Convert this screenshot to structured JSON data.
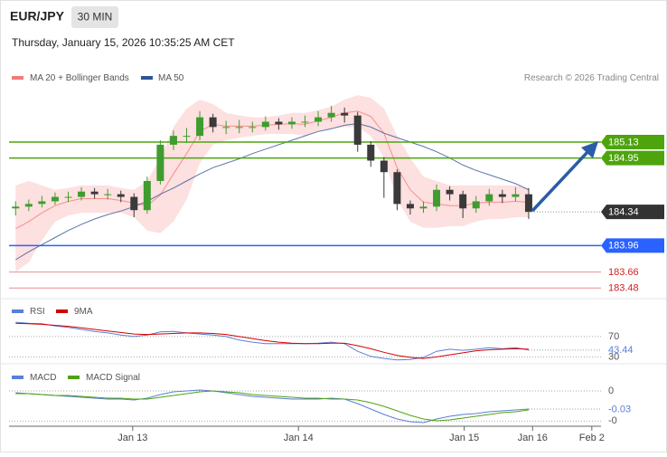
{
  "header": {
    "symbol": "EUR/JPY",
    "interval": "30 MIN",
    "timestamp": "Thursday, January 15, 2026 10:35:25 AM CET",
    "credit": "Research © 2026 Trading Central"
  },
  "chart_data": [
    {
      "type": "candlestick",
      "x": [
        0,
        1,
        2,
        3,
        4,
        5,
        6,
        7,
        8,
        9,
        10,
        11,
        12,
        13,
        14,
        15,
        16,
        17,
        18,
        19,
        20,
        21,
        22,
        23,
        24,
        25,
        26,
        27,
        28,
        29,
        30,
        31,
        32,
        33,
        34,
        35,
        36,
        37,
        38,
        39
      ],
      "open": [
        184.38,
        184.4,
        184.43,
        184.46,
        184.51,
        184.51,
        184.57,
        184.54,
        184.54,
        184.51,
        184.36,
        184.69,
        185.1,
        185.2,
        185.2,
        185.41,
        185.3,
        185.3,
        185.3,
        185.3,
        185.36,
        185.33,
        185.36,
        185.36,
        185.41,
        185.46,
        185.43,
        185.1,
        184.92,
        184.79,
        184.43,
        184.38,
        184.4,
        184.59,
        184.54,
        184.38,
        184.46,
        184.54,
        184.51,
        184.54
      ],
      "high": [
        184.46,
        184.48,
        184.52,
        184.56,
        184.57,
        184.62,
        184.61,
        184.6,
        184.58,
        184.55,
        184.74,
        185.15,
        185.26,
        185.29,
        185.48,
        185.45,
        185.37,
        185.38,
        185.36,
        185.42,
        185.4,
        185.41,
        185.43,
        185.48,
        185.54,
        185.52,
        185.47,
        185.14,
        184.96,
        184.82,
        184.47,
        184.46,
        184.65,
        184.63,
        184.58,
        184.52,
        184.6,
        184.59,
        184.62,
        184.61
      ],
      "low": [
        184.3,
        184.35,
        184.39,
        184.42,
        184.45,
        184.47,
        184.49,
        184.48,
        184.45,
        184.28,
        184.32,
        184.65,
        185.04,
        185.12,
        185.15,
        185.24,
        185.22,
        185.23,
        185.24,
        185.26,
        185.27,
        185.28,
        185.3,
        185.31,
        185.36,
        185.35,
        185.02,
        184.85,
        184.5,
        184.36,
        184.31,
        184.33,
        184.35,
        184.47,
        184.27,
        184.33,
        184.41,
        184.44,
        184.46,
        184.26
      ],
      "close": [
        184.4,
        184.43,
        184.46,
        184.51,
        184.51,
        184.57,
        184.54,
        184.54,
        184.51,
        184.36,
        184.69,
        185.1,
        185.2,
        185.2,
        185.41,
        185.3,
        185.3,
        185.3,
        185.3,
        185.36,
        185.33,
        185.36,
        185.36,
        185.41,
        185.46,
        185.43,
        185.1,
        184.92,
        184.79,
        184.43,
        184.38,
        184.4,
        184.59,
        184.54,
        184.38,
        184.46,
        184.54,
        184.51,
        184.54,
        184.34
      ],
      "up_color": "#3f9c2f",
      "down_color": "#3a3a3a",
      "series": [
        {
          "name": "MA 20 + Bollinger Bands",
          "color": "#f47a7a",
          "band_color": "#fde0e0",
          "values": [
            184.15,
            184.23,
            184.33,
            184.41,
            184.46,
            184.49,
            184.49,
            184.49,
            184.47,
            184.44,
            184.41,
            184.53,
            184.77,
            185.0,
            185.25,
            185.33,
            185.31,
            185.31,
            185.31,
            185.32,
            185.33,
            185.34,
            185.33,
            185.37,
            185.41,
            185.46,
            185.48,
            185.42,
            185.23,
            184.84,
            184.59,
            184.45,
            184.43,
            184.41,
            184.41,
            184.44,
            184.45,
            184.45,
            184.46,
            184.45
          ],
          "upper": [
            184.64,
            184.69,
            184.64,
            184.59,
            184.61,
            184.64,
            184.64,
            184.64,
            184.61,
            184.59,
            184.69,
            184.95,
            185.3,
            185.51,
            185.61,
            185.56,
            185.46,
            185.43,
            185.41,
            185.41,
            185.43,
            185.46,
            185.46,
            185.49,
            185.53,
            185.61,
            185.66,
            185.63,
            185.51,
            185.2,
            184.95,
            184.74,
            184.69,
            184.64,
            184.64,
            184.64,
            184.64,
            184.64,
            184.64,
            184.61
          ],
          "lower": [
            183.66,
            183.77,
            184.02,
            184.23,
            184.3,
            184.33,
            184.33,
            184.33,
            184.33,
            184.28,
            184.13,
            184.1,
            184.23,
            184.48,
            184.89,
            185.1,
            185.15,
            185.18,
            185.2,
            185.22,
            185.22,
            185.22,
            185.2,
            185.25,
            185.28,
            185.3,
            185.3,
            185.2,
            184.95,
            184.48,
            184.23,
            184.16,
            184.16,
            184.18,
            184.18,
            184.23,
            184.26,
            184.26,
            184.28,
            184.28
          ]
        },
        {
          "name": "MA 50",
          "color": "#2e5597",
          "values": [
            183.8,
            183.89,
            183.97,
            184.05,
            184.13,
            184.2,
            184.26,
            184.31,
            184.35,
            184.4,
            184.46,
            184.54,
            184.61,
            184.69,
            184.77,
            184.84,
            184.89,
            184.94,
            185.0,
            185.05,
            185.1,
            185.15,
            185.2,
            185.25,
            185.28,
            185.32,
            185.34,
            185.3,
            185.23,
            185.18,
            185.13,
            185.08,
            185.02,
            184.95,
            184.87,
            184.81,
            184.76,
            184.71,
            184.66,
            184.59
          ]
        }
      ],
      "levels": [
        {
          "value": 185.13,
          "color": "#4ea40d",
          "style": "box"
        },
        {
          "value": 184.95,
          "color": "#4ea40d",
          "style": "box"
        },
        {
          "value": 183.96,
          "color": "#2962ff",
          "style": "box"
        },
        {
          "value": 183.66,
          "color": "#d42020",
          "style": "text"
        },
        {
          "value": 183.48,
          "color": "#d42020",
          "style": "text"
        }
      ],
      "current_color": "#333333",
      "xlim": [
        -0.5,
        44.5
      ],
      "ylim": [
        183.38,
        186.02
      ],
      "xticks": [
        {
          "value": 8.9,
          "label": "Jan 13"
        },
        {
          "value": 21.5,
          "label": "Jan 14"
        },
        {
          "value": 34.1,
          "label": "Jan 15"
        },
        {
          "value": 39.3,
          "label": "Jan 16"
        },
        {
          "value": 43.8,
          "label": "Feb 2"
        }
      ]
    },
    {
      "type": "line",
      "series": [
        {
          "name": "RSI",
          "color": "#5b7fd6",
          "values": [
            98,
            96,
            95,
            91,
            88,
            84,
            80,
            77,
            73,
            70,
            73,
            79,
            80,
            77,
            75,
            73,
            70,
            63,
            59,
            56,
            56,
            56,
            56,
            57,
            59,
            56,
            41,
            31,
            27,
            24,
            25,
            29,
            41,
            45,
            43,
            45,
            48,
            46,
            48,
            43.44
          ]
        },
        {
          "name": "9MA",
          "color": "#d40000",
          "values": [
            96,
            95,
            94,
            92,
            90,
            87,
            84,
            81,
            78,
            75,
            74,
            75,
            76,
            77,
            77,
            76,
            74,
            70,
            66,
            62,
            59,
            57,
            56,
            56,
            57,
            57,
            52,
            46,
            39,
            33,
            29,
            27,
            30,
            34,
            38,
            42,
            44,
            45,
            46,
            45
          ]
        }
      ],
      "ylim": [
        20,
        100
      ],
      "yticks": [
        30,
        70
      ]
    },
    {
      "type": "line",
      "series": [
        {
          "name": "MACD",
          "color": "#5b7fd6",
          "values": [
            -0.003,
            -0.0045,
            -0.006,
            -0.0075,
            -0.009,
            -0.0105,
            -0.012,
            -0.0135,
            -0.0135,
            -0.015,
            -0.012,
            -0.006,
            -0.0015,
            0,
            0.0015,
            0,
            -0.003,
            -0.006,
            -0.009,
            -0.0105,
            -0.012,
            -0.0135,
            -0.0135,
            -0.0135,
            -0.012,
            -0.0135,
            -0.021,
            -0.03,
            -0.039,
            -0.0465,
            -0.051,
            -0.0525,
            -0.0465,
            -0.042,
            -0.039,
            -0.0375,
            -0.0345,
            -0.033,
            -0.0315,
            -0.03
          ]
        },
        {
          "name": "MACD Signal",
          "color": "#4ea40d",
          "values": [
            -0.0045,
            -0.0045,
            -0.006,
            -0.0075,
            -0.0075,
            -0.009,
            -0.0105,
            -0.012,
            -0.012,
            -0.0135,
            -0.0135,
            -0.0105,
            -0.0075,
            -0.0045,
            -0.0015,
            0,
            -0.0015,
            -0.003,
            -0.006,
            -0.0075,
            -0.009,
            -0.0105,
            -0.012,
            -0.012,
            -0.0135,
            -0.0135,
            -0.015,
            -0.0195,
            -0.0255,
            -0.033,
            -0.0405,
            -0.0465,
            -0.0495,
            -0.048,
            -0.045,
            -0.042,
            -0.039,
            -0.036,
            -0.0345,
            -0.0315
          ]
        }
      ],
      "ylim": [
        -0.057,
        0.036
      ],
      "yticks": [
        0,
        {
          "value": -0.05,
          "label": "-0"
        }
      ]
    }
  ]
}
